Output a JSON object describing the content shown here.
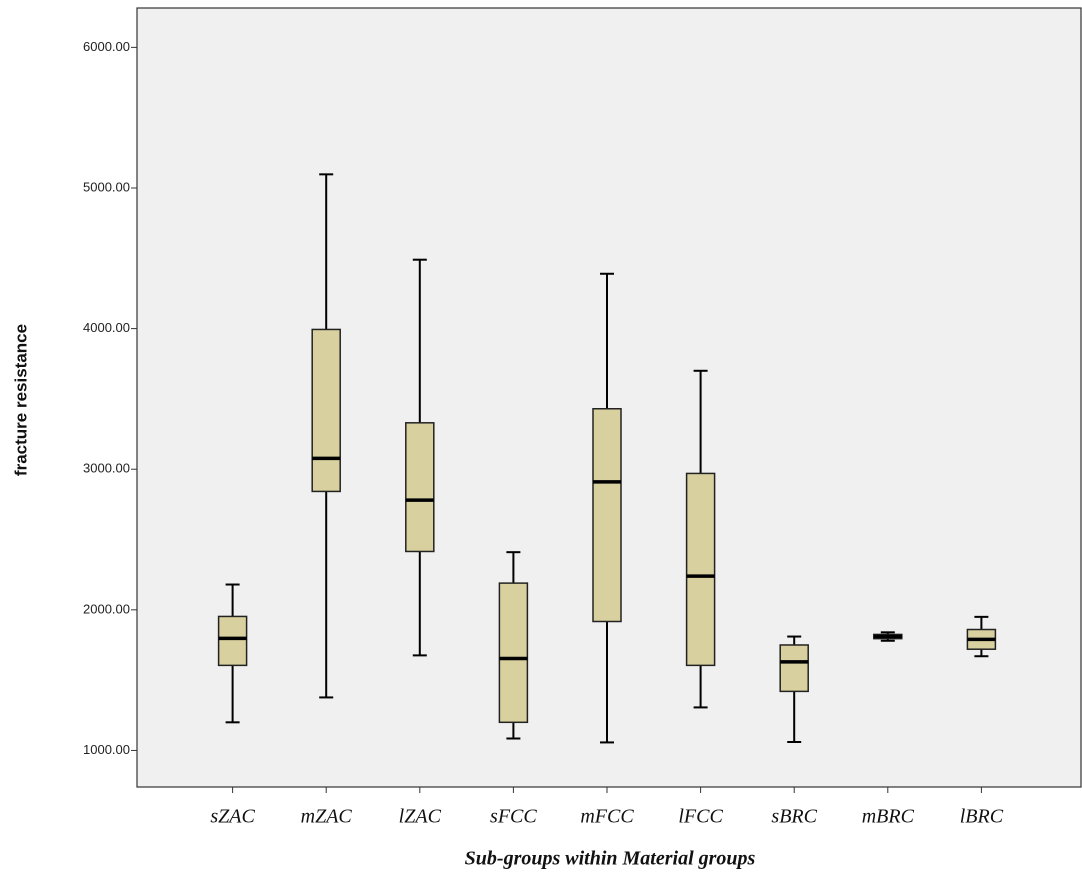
{
  "chart_data": {
    "type": "box",
    "y_label": "fracture resistance",
    "x_label": "Sub-groups within Material groups",
    "categories": [
      "sZAC",
      "mZAC",
      "lZAC",
      "sFCC",
      "mFCC",
      "lFCC",
      "sBRC",
      "mBRC",
      "lBRC"
    ],
    "boxes": [
      {
        "min": 1200,
        "q1": 1605,
        "median": 1797,
        "q3": 1953,
        "max": 2180
      },
      {
        "min": 1377,
        "q1": 2842,
        "median": 3077,
        "q3": 3994,
        "max": 5097
      },
      {
        "min": 1676,
        "q1": 2415,
        "median": 2780,
        "q3": 3330,
        "max": 4490
      },
      {
        "min": 1085,
        "q1": 1200,
        "median": 1654,
        "q3": 2190,
        "max": 2410
      },
      {
        "min": 1057,
        "q1": 1917,
        "median": 2910,
        "q3": 3430,
        "max": 4390
      },
      {
        "min": 1306,
        "q1": 1605,
        "median": 2240,
        "q3": 2970,
        "max": 3700
      },
      {
        "min": 1060,
        "q1": 1420,
        "median": 1630,
        "q3": 1750,
        "max": 1810
      },
      {
        "min": 1780,
        "q1": 1795,
        "median": 1810,
        "q3": 1825,
        "max": 1840
      },
      {
        "min": 1670,
        "q1": 1720,
        "median": 1790,
        "q3": 1860,
        "max": 1950
      }
    ],
    "color": "#d8d09e",
    "ylim": [
      740,
      6280
    ],
    "yticks": [
      {
        "value": 1000,
        "label": "1000.00"
      },
      {
        "value": 2000,
        "label": "2000.00"
      },
      {
        "value": 3000,
        "label": "3000.00"
      },
      {
        "value": 4000,
        "label": "4000.00"
      },
      {
        "value": 5000,
        "label": "5000.00"
      },
      {
        "value": 6000,
        "label": "6000.00"
      }
    ]
  }
}
